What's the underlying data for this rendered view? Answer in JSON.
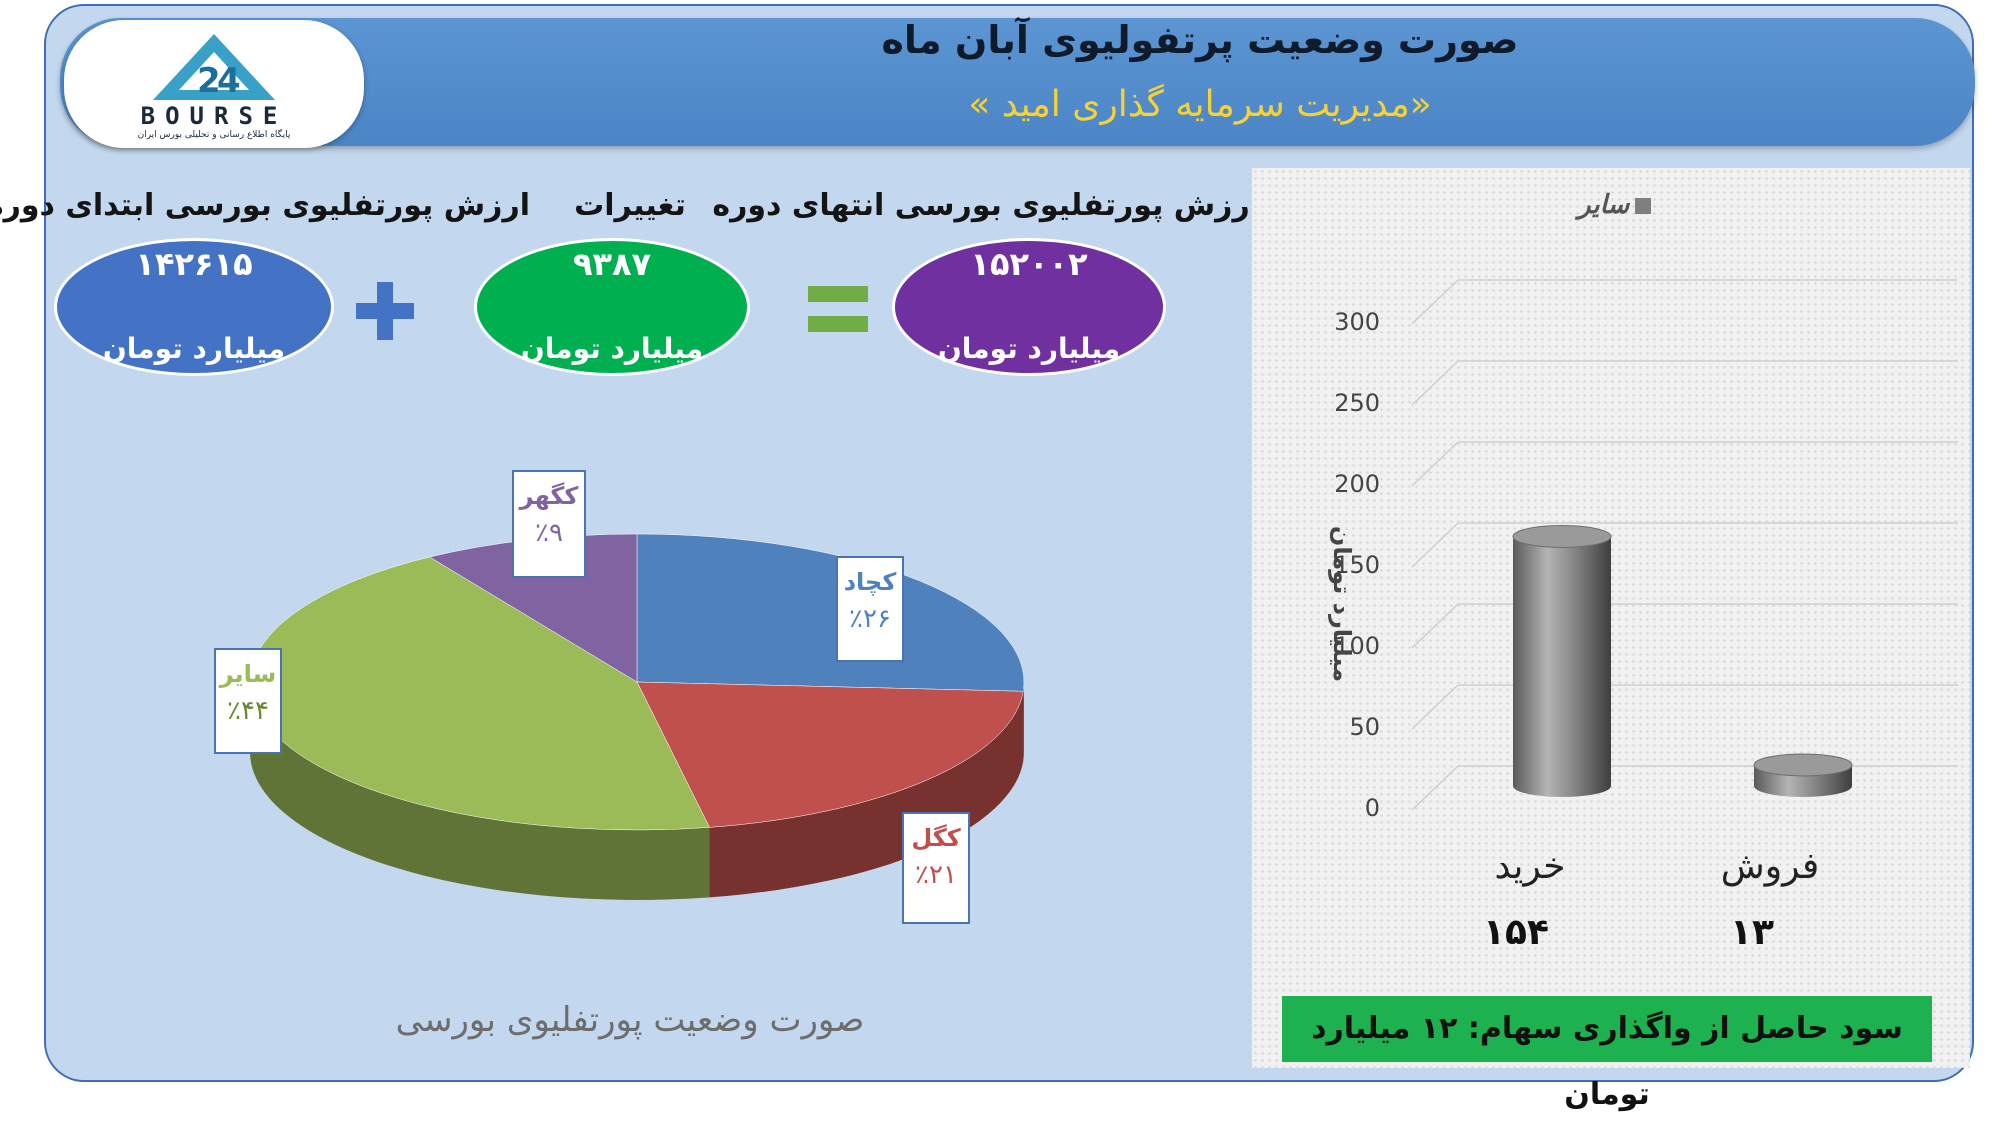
{
  "header": {
    "title": "صورت وضعیت پرتفولیوی آبان ماه",
    "subtitle": "«مدیریت سرمایه گذاری امید »"
  },
  "logo": {
    "wordmark": "BOURSE",
    "tagline": "پایگاه اطلاع رسانی و تحلیلی بورس ایران"
  },
  "summary": {
    "start": {
      "label": "ارزش پورتفلیوی بورسی ابتدای دوره",
      "value": "۱۴۲۶۱۵",
      "unit": "میلیارد تومان",
      "color": "#4472c4"
    },
    "change": {
      "label": "تغییرات",
      "value": "۹۳۸۷",
      "unit": "میلیارد تومان",
      "color": "#00b050"
    },
    "end": {
      "label": "ارزش پورتفلیوی بورسی انتهای دوره",
      "value": "۱۵۲۰۰۲",
      "unit": "میلیارد تومان",
      "color": "#7030a0"
    },
    "plus_icon": "plus-icon",
    "equals_icon": "equals-icon"
  },
  "pie": {
    "caption": "صورت وضعیت پورتفلیوی بورسی"
  },
  "bar": {
    "legend": "سایر",
    "ylabel": "میلیارد تومان",
    "profit_text": "سود حاصل از واگذاری سهام: ۱۲ میلیارد تومان"
  },
  "chart_data": [
    {
      "type": "pie",
      "series": [
        {
          "name": "کچاد",
          "label": "٪۲۶",
          "value": 26,
          "color": "#4f81bd"
        },
        {
          "name": "کگل",
          "label": "٪۲۱",
          "value": 21,
          "color": "#c0504d"
        },
        {
          "name": "سایر",
          "label": "٪۴۴",
          "value": 44,
          "color": "#9bbb59"
        },
        {
          "name": "کگهر",
          "label": "٪۹",
          "value": 9,
          "color": "#8064a2"
        }
      ]
    },
    {
      "type": "bar",
      "categories": [
        "خرید",
        "فروش"
      ],
      "value_labels": [
        "۱۵۴",
        "۱۳"
      ],
      "values": [
        154,
        13
      ],
      "yticks": [
        "0",
        "50",
        "100",
        "150",
        "200",
        "250",
        "300"
      ],
      "ylim": [
        0,
        300
      ],
      "ylabel": "میلیارد تومان",
      "legend": "سایر",
      "color": "#7f7f7f"
    }
  ]
}
